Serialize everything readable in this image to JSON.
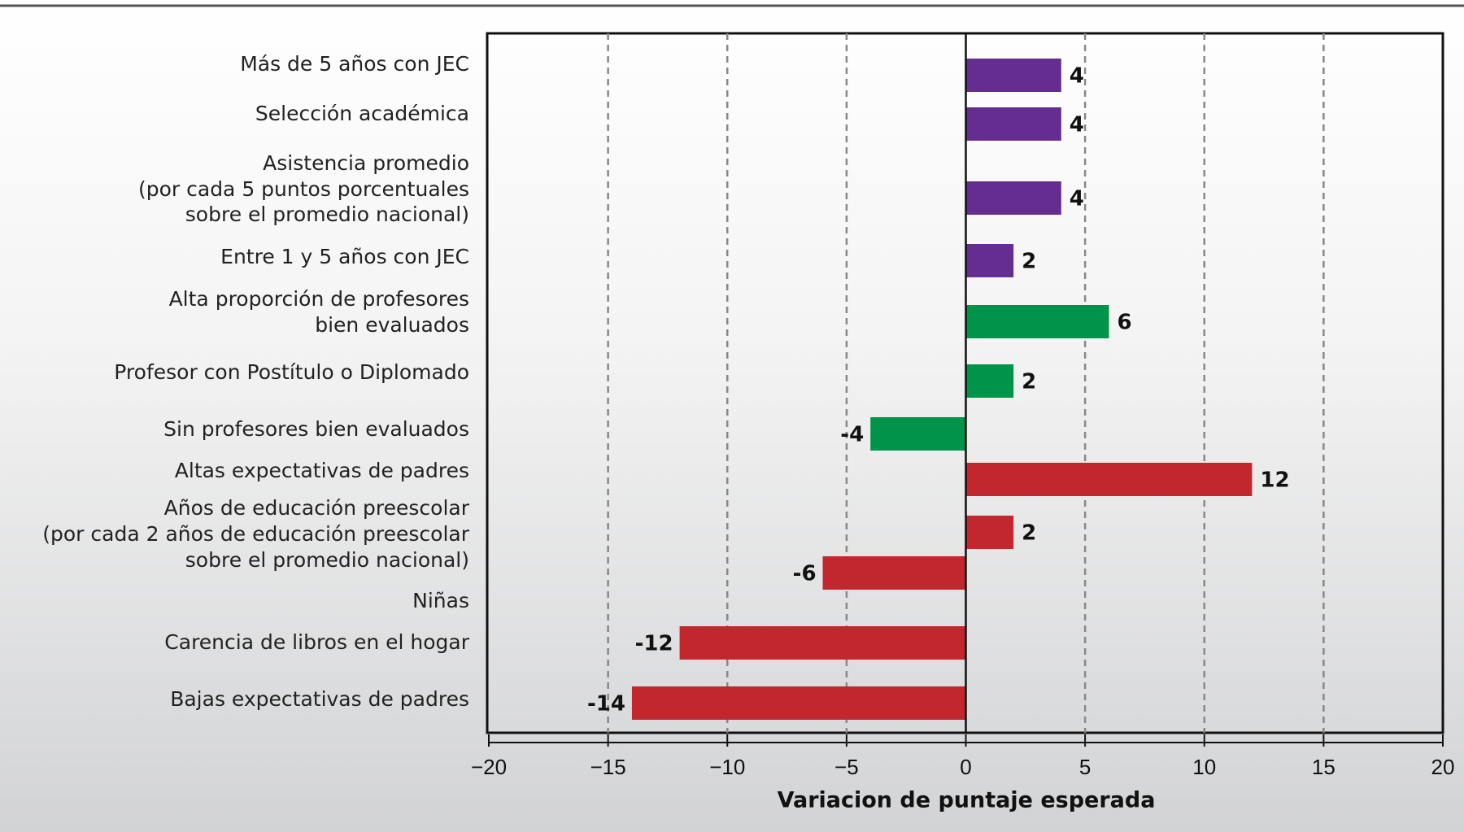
{
  "chart_data": {
    "type": "barh",
    "categories": [
      [
        "Más de 5 años con JEC"
      ],
      [
        "Selección académica"
      ],
      [
        "Asistencia promedio",
        "(por cada 5 puntos porcentuales",
        "sobre el promedio nacional)"
      ],
      [
        "Entre 1 y 5 años con JEC"
      ],
      [
        "Alta proporción de profesores",
        "bien evaluados"
      ],
      [
        "Profesor con Postítulo o Diplomado"
      ],
      [
        "Sin profesores bien evaluados"
      ],
      [
        "Altas expectativas de padres"
      ],
      [
        "Años de educación preescolar",
        "(por cada 2 años de educación preescolar",
        "sobre el promedio nacional)"
      ],
      [
        "Niñas"
      ],
      [
        "Carencia de libros en el hogar"
      ],
      [
        "Bajas expectativas de padres"
      ]
    ],
    "values": [
      4,
      4,
      4,
      2,
      6,
      2,
      -4,
      12,
      2,
      -6,
      -12,
      -14
    ],
    "colors": [
      "#662d91",
      "#662d91",
      "#662d91",
      "#662d91",
      "#00934a",
      "#00934a",
      "#00934a",
      "#c1272d",
      "#c1272d",
      "#c1272d",
      "#c1272d",
      "#c1272d"
    ],
    "x_label": "Variacion de puntaje esperada",
    "xlim": [
      -20,
      20
    ],
    "xticks": [
      {
        "value": -20,
        "label": "−20"
      },
      {
        "value": -15,
        "label": "−15"
      },
      {
        "value": -10,
        "label": "−10"
      },
      {
        "value": -5,
        "label": "−5"
      },
      0,
      5,
      10,
      15,
      20
    ],
    "grid": true
  }
}
